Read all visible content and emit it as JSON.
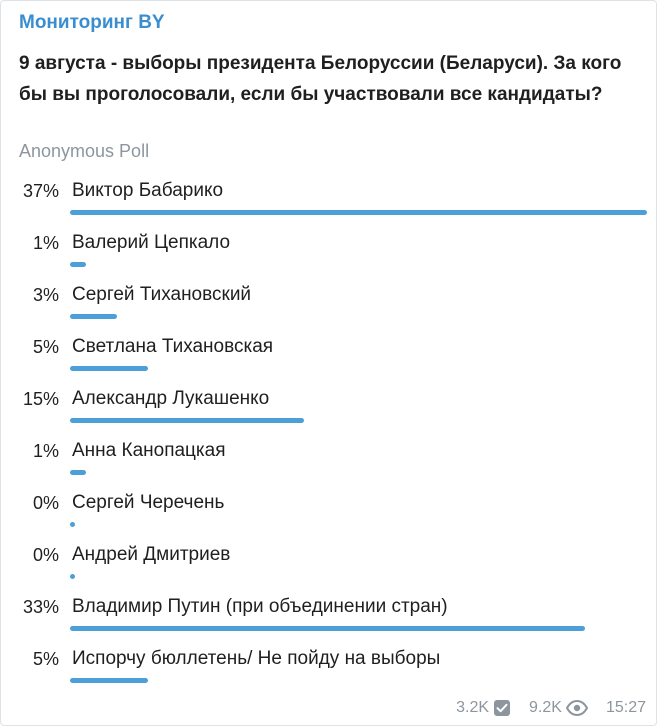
{
  "channel_name": "Мониторинг BY",
  "question": "9 августа - выборы президента Белоруссии (Беларуси). За кого бы вы проголосовали, если бы участвовали все кандидаты?",
  "poll_type": "Anonymous Poll",
  "options": [
    {
      "percent": "37%",
      "label": "Виктор Бабарико",
      "value": 37
    },
    {
      "percent": "1%",
      "label": "Валерий Цепкало",
      "value": 1
    },
    {
      "percent": "3%",
      "label": "Сергей Тихановский",
      "value": 3
    },
    {
      "percent": "5%",
      "label": "Светлана Тихановская",
      "value": 5
    },
    {
      "percent": "15%",
      "label": "Александр Лукашенко",
      "value": 15
    },
    {
      "percent": "1%",
      "label": "Анна Канопацкая",
      "value": 1
    },
    {
      "percent": "0%",
      "label": "Сергей Черечень",
      "value": 0
    },
    {
      "percent": "0%",
      "label": "Андрей Дмитриев",
      "value": 0
    },
    {
      "percent": "33%",
      "label": "Владимир Путин (при объединении стран)",
      "value": 33
    },
    {
      "percent": "5%",
      "label": "Испорчу бюллетень/ Не пойду на выборы",
      "value": 5
    }
  ],
  "footer": {
    "votes": "3.2K",
    "vote_icon": "checkbox-icon",
    "views": "9.2K",
    "view_icon": "eye-icon",
    "time": "15:27"
  },
  "colors": {
    "channel": "#3a8ed0",
    "bar": "#4d9fd8",
    "muted": "#8d969e"
  }
}
